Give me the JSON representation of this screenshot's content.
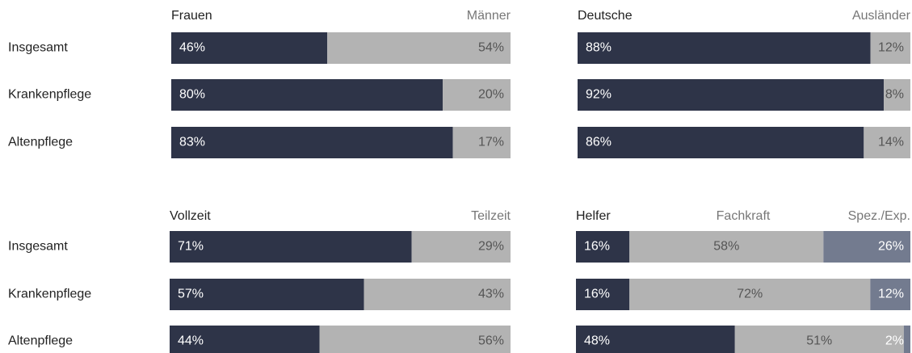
{
  "chart_data": [
    {
      "type": "bar",
      "stacked": true,
      "orientation": "horizontal",
      "categories": [
        "Insgesamt",
        "Krankenpflege",
        "Altenpflege"
      ],
      "series": [
        {
          "name": "Frauen",
          "color": "#2e3448",
          "values": [
            46,
            80,
            83
          ],
          "value_labels": [
            "46%",
            "80%",
            "83%"
          ]
        },
        {
          "name": "Männer",
          "color": "#b3b3b3",
          "values": [
            54,
            20,
            17
          ],
          "value_labels": [
            "54%",
            "20%",
            "17%"
          ]
        }
      ]
    },
    {
      "type": "bar",
      "stacked": true,
      "orientation": "horizontal",
      "series": [
        {
          "name": "Deutsche",
          "color": "#2e3448",
          "values": [
            88,
            92,
            86
          ],
          "value_labels": [
            "88%",
            "92%",
            "86%"
          ]
        },
        {
          "name": "Ausländer",
          "color": "#b3b3b3",
          "values": [
            12,
            8,
            14
          ],
          "value_labels": [
            "12%",
            "8%",
            "14%"
          ]
        }
      ]
    },
    {
      "type": "bar",
      "stacked": true,
      "orientation": "horizontal",
      "categories": [
        "Insgesamt",
        "Krankenpflege",
        "Altenpflege"
      ],
      "series": [
        {
          "name": "Vollzeit",
          "color": "#2e3448",
          "values": [
            71,
            57,
            44
          ],
          "value_labels": [
            "71%",
            "57%",
            "44%"
          ]
        },
        {
          "name": "Teilzeit",
          "color": "#b3b3b3",
          "values": [
            29,
            43,
            56
          ],
          "value_labels": [
            "29%",
            "43%",
            "56%"
          ]
        }
      ]
    },
    {
      "type": "bar",
      "stacked": true,
      "orientation": "horizontal",
      "series": [
        {
          "name": "Helfer",
          "color": "#2e3448",
          "values": [
            16,
            16,
            48
          ],
          "value_labels": [
            "16%",
            "16%",
            "48%"
          ]
        },
        {
          "name": "Fachkraft",
          "color": "#b3b3b3",
          "values": [
            58,
            72,
            51
          ],
          "value_labels": [
            "58%",
            "72%",
            "51%"
          ]
        },
        {
          "name": "Spez./Exp.",
          "color": "#737b8f",
          "values": [
            26,
            12,
            2
          ],
          "value_labels": [
            "26%",
            "12%",
            "2%"
          ]
        }
      ]
    }
  ]
}
